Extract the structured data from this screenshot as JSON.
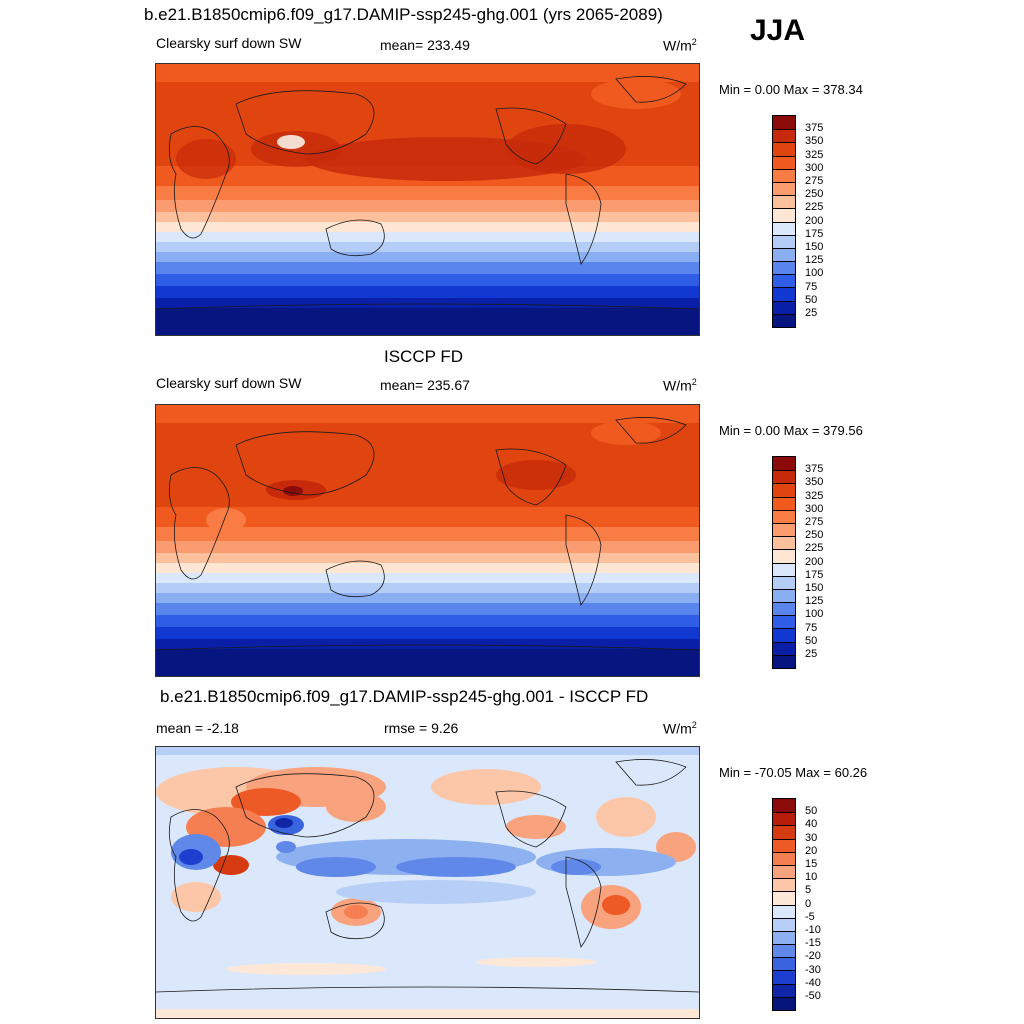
{
  "season": "JJA",
  "panels": [
    {
      "title": "b.e21.B1850cmip6.f09_g17.DAMIP-ssp245-ghg.001 (yrs 2065-2089)",
      "left_label": "Clearsky surf down SW",
      "center_label": "mean= 233.49",
      "units": "W/m",
      "units_sup": "2",
      "minmax": "Min =   0.00 Max = 378.34",
      "colorbar_labels": [
        "375",
        "350",
        "325",
        "300",
        "275",
        "250",
        "225",
        "200",
        "175",
        "150",
        "125",
        "100",
        "75",
        "50",
        "25"
      ]
    },
    {
      "title": "ISCCP FD",
      "left_label": "Clearsky surf down SW",
      "center_label": "mean= 235.67",
      "units": "W/m",
      "units_sup": "2",
      "minmax": "Min =   0.00 Max = 379.56",
      "colorbar_labels": [
        "375",
        "350",
        "325",
        "300",
        "275",
        "250",
        "225",
        "200",
        "175",
        "150",
        "125",
        "100",
        "75",
        "50",
        "25"
      ]
    },
    {
      "title": "b.e21.B1850cmip6.f09_g17.DAMIP-ssp245-ghg.001 - ISCCP FD",
      "left_label": "mean =  -2.18",
      "center_label": "rmse =   9.26",
      "units": "W/m",
      "units_sup": "2",
      "minmax": "Min = -70.05 Max =  60.26",
      "colorbar_labels": [
        "50",
        "40",
        "30",
        "20",
        "15",
        "10",
        "5",
        "0",
        "-5",
        "-10",
        "-15",
        "-20",
        "-30",
        "-40",
        "-50"
      ]
    }
  ],
  "colors": {
    "abs_scale": [
      "#8b0a0a",
      "#c72a0a",
      "#e0450f",
      "#f05a1e",
      "#f87c44",
      "#fb9b70",
      "#fdc09c",
      "#fde6d4",
      "#dbe8fb",
      "#b4cdf7",
      "#8aaef2",
      "#5a85ec",
      "#2f5de6",
      "#1138d0",
      "#0a1fa8",
      "#061580"
    ],
    "diff_scale": [
      "#8b0a0a",
      "#b81c0a",
      "#d63a10",
      "#ee5a25",
      "#f67f52",
      "#f9a37e",
      "#fcc7a8",
      "#fde8d8",
      "#dbe8fb",
      "#b7cff6",
      "#8cb0f0",
      "#5f88e8",
      "#3a63df",
      "#1c3fcf",
      "#0f26a8",
      "#06157a"
    ]
  }
}
